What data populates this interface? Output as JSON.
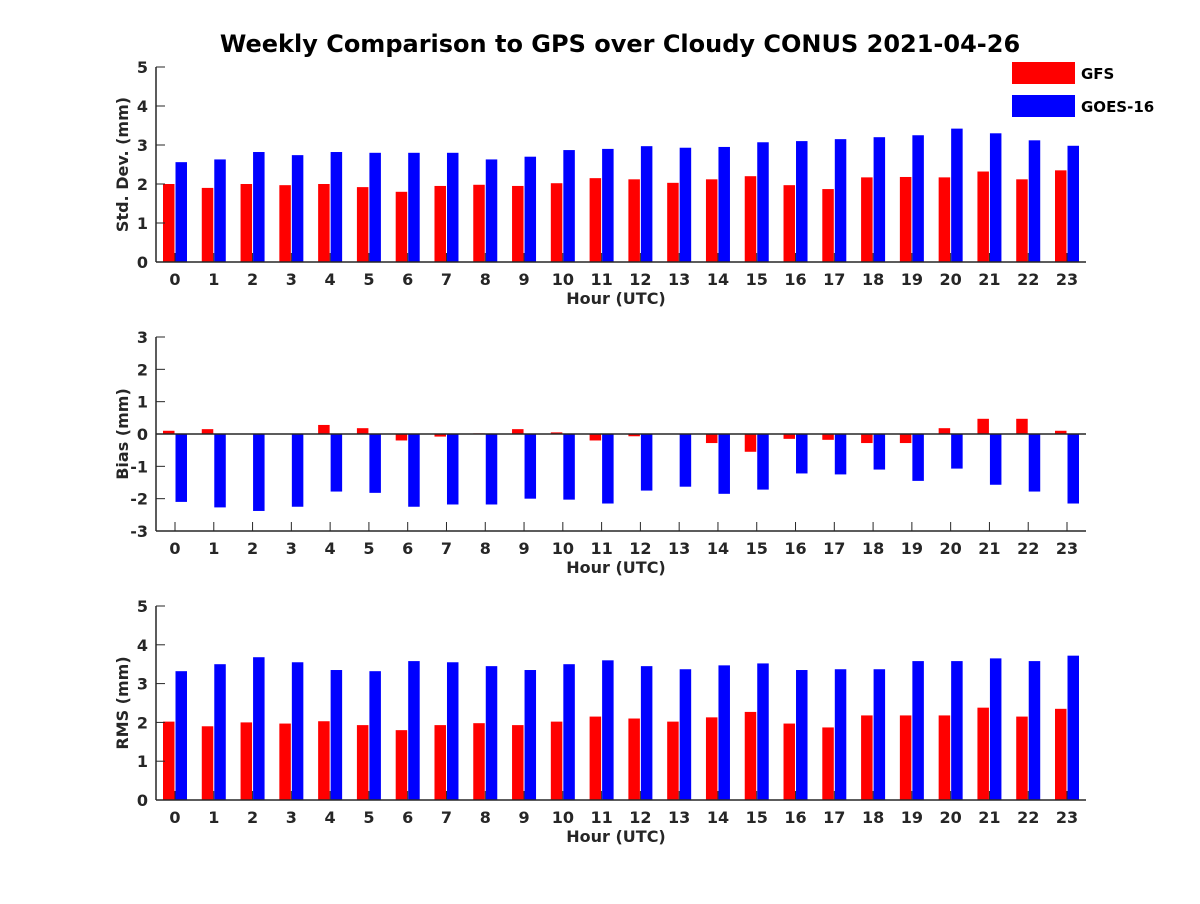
{
  "title": "Weekly Comparison to GPS over Cloudy CONUS 2021-04-26",
  "legend": {
    "items": [
      {
        "label": "GFS",
        "color": "#ff0000"
      },
      {
        "label": "GOES-16",
        "color": "#0000ff"
      }
    ],
    "placement": "top-right"
  },
  "chart_data": [
    {
      "type": "bar",
      "xlabel": "Hour (UTC)",
      "ylabel": "Std. Dev. (mm)",
      "ylim": [
        0,
        5
      ],
      "yticks": [
        0,
        1,
        2,
        3,
        4,
        5
      ],
      "grid": false,
      "categories": [
        "0",
        "1",
        "2",
        "3",
        "4",
        "5",
        "6",
        "7",
        "8",
        "9",
        "10",
        "11",
        "12",
        "13",
        "14",
        "15",
        "16",
        "17",
        "18",
        "19",
        "20",
        "21",
        "22",
        "23"
      ],
      "series": [
        {
          "name": "GFS",
          "color": "#ff0000",
          "values": [
            2.0,
            1.9,
            2.0,
            1.97,
            2.0,
            1.92,
            1.8,
            1.95,
            1.98,
            1.95,
            2.02,
            2.15,
            2.12,
            2.03,
            2.12,
            2.2,
            1.97,
            1.87,
            2.17,
            2.18,
            2.17,
            2.32,
            2.12,
            2.35
          ]
        },
        {
          "name": "GOES-16",
          "color": "#0000ff",
          "values": [
            2.56,
            2.63,
            2.82,
            2.74,
            2.82,
            2.8,
            2.8,
            2.8,
            2.63,
            2.7,
            2.87,
            2.9,
            2.97,
            2.93,
            2.95,
            3.07,
            3.1,
            3.15,
            3.2,
            3.25,
            3.42,
            3.3,
            3.12,
            2.98
          ]
        }
      ]
    },
    {
      "type": "bar",
      "xlabel": "Hour (UTC)",
      "ylabel": "Bias (mm)",
      "ylim": [
        -3,
        3
      ],
      "yticks": [
        -3,
        -2,
        -1,
        0,
        1,
        2,
        3
      ],
      "grid": false,
      "categories": [
        "0",
        "1",
        "2",
        "3",
        "4",
        "5",
        "6",
        "7",
        "8",
        "9",
        "10",
        "11",
        "12",
        "13",
        "14",
        "15",
        "16",
        "17",
        "18",
        "19",
        "20",
        "21",
        "22",
        "23"
      ],
      "series": [
        {
          "name": "GFS",
          "color": "#ff0000",
          "values": [
            0.1,
            0.15,
            0.0,
            0.0,
            0.28,
            0.18,
            -0.2,
            -0.08,
            0.02,
            0.15,
            0.05,
            -0.2,
            -0.07,
            0.0,
            -0.28,
            -0.55,
            -0.15,
            -0.18,
            -0.28,
            -0.28,
            0.18,
            0.47,
            0.47,
            0.1
          ]
        },
        {
          "name": "GOES-16",
          "color": "#0000ff",
          "values": [
            -2.1,
            -2.27,
            -2.38,
            -2.25,
            -1.78,
            -1.82,
            -2.25,
            -2.18,
            -2.18,
            -2.0,
            -2.03,
            -2.15,
            -1.75,
            -1.63,
            -1.85,
            -1.72,
            -1.22,
            -1.25,
            -1.1,
            -1.45,
            -1.07,
            -1.57,
            -1.78,
            -2.15
          ]
        }
      ]
    },
    {
      "type": "bar",
      "xlabel": "Hour (UTC)",
      "ylabel": "RMS (mm)",
      "ylim": [
        0,
        5
      ],
      "yticks": [
        0,
        1,
        2,
        3,
        4,
        5
      ],
      "grid": false,
      "categories": [
        "0",
        "1",
        "2",
        "3",
        "4",
        "5",
        "6",
        "7",
        "8",
        "9",
        "10",
        "11",
        "12",
        "13",
        "14",
        "15",
        "16",
        "17",
        "18",
        "19",
        "20",
        "21",
        "22",
        "23"
      ],
      "series": [
        {
          "name": "GFS",
          "color": "#ff0000",
          "values": [
            2.02,
            1.9,
            2.0,
            1.97,
            2.03,
            1.93,
            1.8,
            1.93,
            1.98,
            1.93,
            2.02,
            2.15,
            2.1,
            2.02,
            2.13,
            2.27,
            1.97,
            1.87,
            2.18,
            2.18,
            2.18,
            2.38,
            2.15,
            2.35
          ]
        },
        {
          "name": "GOES-16",
          "color": "#0000ff",
          "values": [
            3.32,
            3.5,
            3.68,
            3.55,
            3.35,
            3.32,
            3.58,
            3.55,
            3.45,
            3.35,
            3.5,
            3.6,
            3.45,
            3.37,
            3.47,
            3.52,
            3.35,
            3.37,
            3.37,
            3.58,
            3.58,
            3.65,
            3.58,
            3.72
          ]
        }
      ]
    }
  ]
}
